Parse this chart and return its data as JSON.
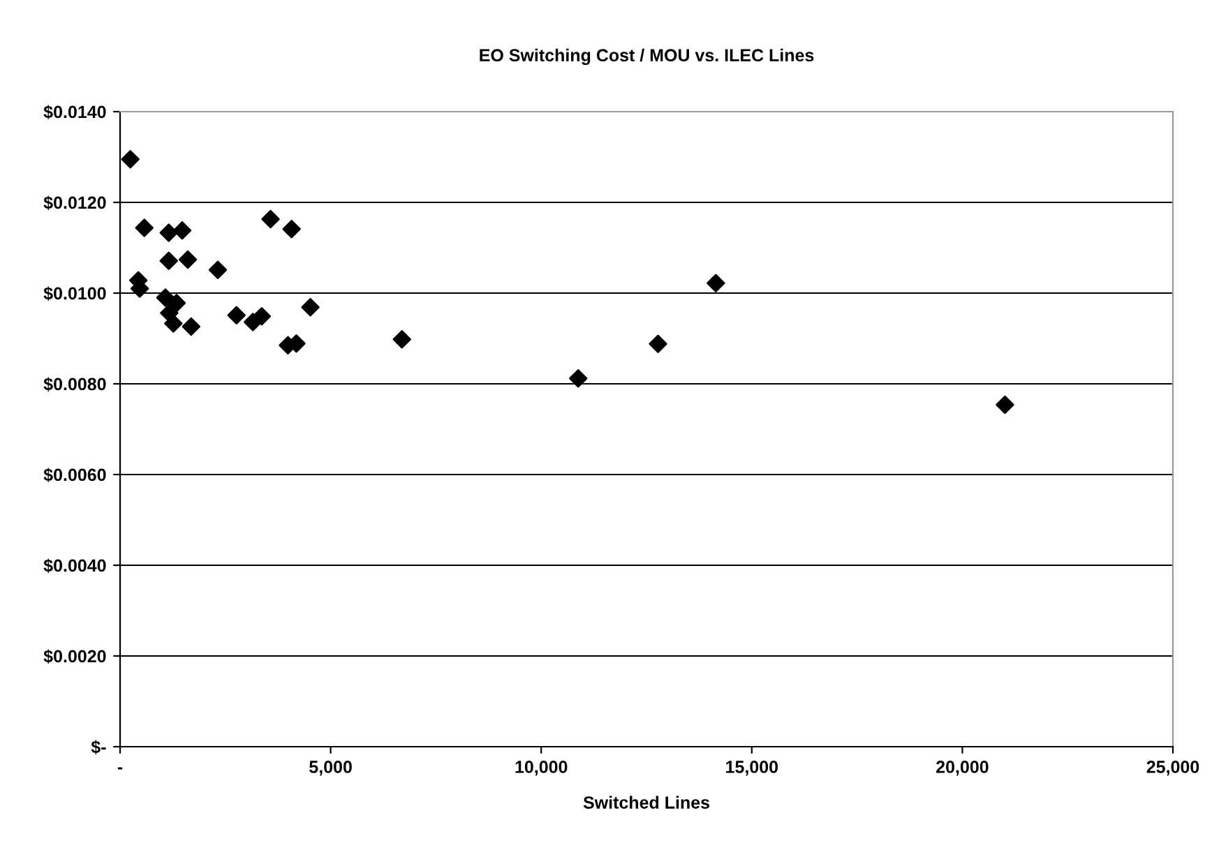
{
  "chart_data": {
    "type": "scatter",
    "title": "EO Switching Cost / MOU vs. ILEC Lines",
    "xlabel": "Switched Lines",
    "x": [
      243,
      576,
      1156,
      1475,
      1156,
      1608,
      2321,
      433,
      466,
      1076,
      1342,
      1166,
      1265,
      1688,
      2764,
      3154,
      3363,
      3573,
      4073,
      4519,
      3986,
      4186,
      6693,
      10879,
      12774,
      14146,
      21012
    ],
    "series": [
      {
        "color": "#000000",
        "values": [
          0.01295,
          0.01144,
          0.01133,
          0.01138,
          0.01071,
          0.01074,
          0.01051,
          0.01028,
          0.0101,
          0.0099,
          0.00978,
          0.00956,
          0.00933,
          0.00926,
          0.00951,
          0.00936,
          0.00949,
          0.01163,
          0.01141,
          0.00969,
          0.00885,
          0.00889,
          0.00898,
          0.00812,
          0.00888,
          0.01022,
          0.00754
        ]
      }
    ],
    "xlim": [
      0,
      25000
    ],
    "xticks": [
      {
        "value": 0,
        "label": "-"
      },
      {
        "value": 5000,
        "label": "5,000"
      },
      {
        "value": 10000,
        "label": "10,000"
      },
      {
        "value": 15000,
        "label": "15,000"
      },
      {
        "value": 20000,
        "label": "20,000"
      },
      {
        "value": 25000,
        "label": "25,000"
      }
    ],
    "ylim": [
      0,
      0.014
    ],
    "yticks": [
      {
        "value": 0,
        "label": "$-"
      },
      {
        "value": 0.002,
        "label": "$0.0020"
      },
      {
        "value": 0.004,
        "label": "$0.0040"
      },
      {
        "value": 0.006,
        "label": "$0.0060"
      },
      {
        "value": 0.008,
        "label": "$0.0080"
      },
      {
        "value": 0.01,
        "label": "$0.0100"
      },
      {
        "value": 0.012,
        "label": "$0.0120"
      },
      {
        "value": 0.014,
        "label": "$0.0140"
      }
    ],
    "grid": "y",
    "marker": "diamond"
  }
}
